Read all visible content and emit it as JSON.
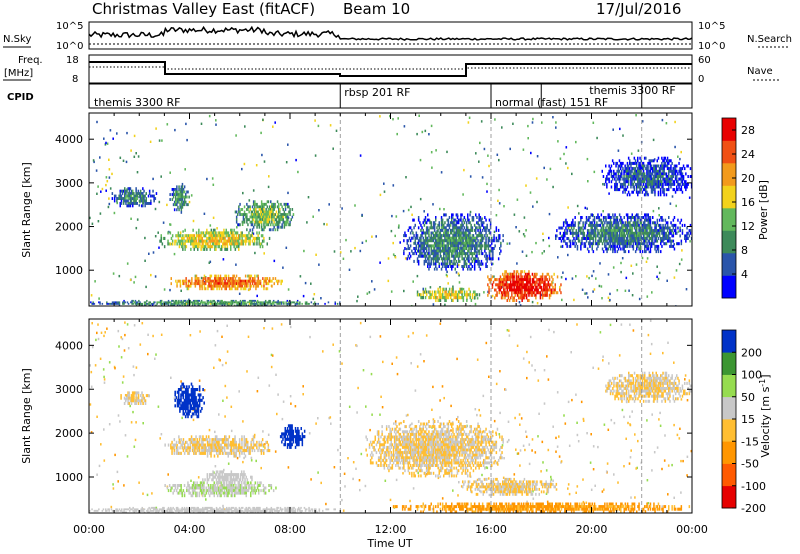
{
  "header": {
    "station": "Christmas Valley East (fitACF)",
    "beam": "Beam 10",
    "date": "17/Jul/2016"
  },
  "panels": {
    "nsky_label": "N.Sky",
    "nsearch_label": "N.Search",
    "freq_label_1": "Freq.",
    "freq_label_2": "[MHz]",
    "nave_label": "Nave",
    "cpid_label": "CPID",
    "nsky_ticks": [
      "10^5",
      "10^0"
    ],
    "nsearch_ticks": [
      "10^5",
      "10^0"
    ],
    "freq_ticks": [
      "18",
      "8"
    ],
    "nave_ticks": [
      "60",
      "0"
    ]
  },
  "cpid": [
    {
      "label": "themis 3300 RF",
      "start": 0,
      "end": 10
    },
    {
      "label": "rbsp 201 RF",
      "start": 10,
      "end": 16
    },
    {
      "label": "normal (fast) 151 RF",
      "start": 16,
      "end": 24
    },
    {
      "label": "themis 3300 RF",
      "start": 18,
      "end": 22
    }
  ],
  "chart_data": [
    {
      "type": "heatmap",
      "title": "",
      "xlabel": "Time UT",
      "ylabel": "Slant Range [km]",
      "xlim": [
        0,
        24
      ],
      "ylim": [
        180,
        4600
      ],
      "x_ticks": [
        "00:00",
        "04:00",
        "08:00",
        "12:00",
        "16:00",
        "20:00",
        "00:00"
      ],
      "y_ticks": [
        1000,
        2000,
        3000,
        4000
      ],
      "colorbar": {
        "label": "Power [dB]",
        "ticks": [
          4,
          8,
          12,
          16,
          20,
          24,
          28
        ],
        "range": [
          0,
          30
        ],
        "colors": [
          "#0000ff",
          "#2a55aa",
          "#3d8a5a",
          "#62b85c",
          "#f2d21c",
          "#f29a1c",
          "#f05014",
          "#e80000"
        ]
      },
      "echo_regions": [
        {
          "t0": 3.2,
          "t1": 7.8,
          "r0": 550,
          "r1": 900,
          "value": 24
        },
        {
          "t0": 2.8,
          "t1": 7.2,
          "r0": 1450,
          "r1": 1950,
          "value": 18
        },
        {
          "t0": 5.8,
          "t1": 8.2,
          "r0": 1900,
          "r1": 2600,
          "value": 14
        },
        {
          "t0": 0.9,
          "t1": 2.7,
          "r0": 2450,
          "r1": 2900,
          "value": 10
        },
        {
          "t0": 3.2,
          "t1": 4.0,
          "r0": 2300,
          "r1": 3000,
          "value": 11
        },
        {
          "t0": 15.8,
          "t1": 18.8,
          "r0": 280,
          "r1": 1000,
          "value": 28
        },
        {
          "t0": 13.0,
          "t1": 15.6,
          "r0": 280,
          "r1": 600,
          "value": 18
        },
        {
          "t0": 18.5,
          "t1": 24.0,
          "r0": 1400,
          "r1": 2300,
          "value": 9
        },
        {
          "t0": 20.4,
          "t1": 24.0,
          "r0": 2700,
          "r1": 3600,
          "value": 7
        },
        {
          "t0": 0.0,
          "t1": 10.0,
          "r0": 180,
          "r1": 320,
          "value": 12
        },
        {
          "t0": 12.5,
          "t1": 16.5,
          "r0": 1000,
          "r1": 2300,
          "value": 10
        }
      ]
    },
    {
      "type": "heatmap",
      "title": "",
      "xlabel": "Time UT",
      "ylabel": "Slant Range [km]",
      "xlim": [
        0,
        24
      ],
      "ylim": [
        180,
        4600
      ],
      "x_ticks": [
        "00:00",
        "04:00",
        "08:00",
        "12:00",
        "16:00",
        "20:00",
        "00:00"
      ],
      "y_ticks": [
        1000,
        2000,
        3000,
        4000
      ],
      "colorbar": {
        "label": "Velocity [m s^-1]",
        "ticks": [
          200,
          100,
          50,
          15,
          -15,
          -50,
          -100,
          -200
        ],
        "range": [
          -250,
          250
        ],
        "colors": [
          "#e60000",
          "#ff5a00",
          "#ff9600",
          "#ffbe32",
          "#c8c8c8",
          "#96dc50",
          "#3c9632",
          "#0032c8"
        ]
      },
      "echo_regions": [
        {
          "t0": 3.0,
          "t1": 7.5,
          "r0": 550,
          "r1": 900,
          "value": 60
        },
        {
          "t0": 4.5,
          "t1": 6.5,
          "r0": 850,
          "r1": 1150,
          "value": 40
        },
        {
          "t0": 3.0,
          "t1": 7.2,
          "r0": 1450,
          "r1": 1950,
          "value": 0
        },
        {
          "t0": 3.4,
          "t1": 4.6,
          "r0": 2350,
          "r1": 3150,
          "value": 220
        },
        {
          "t0": 7.6,
          "t1": 8.6,
          "r0": 1650,
          "r1": 2200,
          "value": 220
        },
        {
          "t0": 1.2,
          "t1": 2.4,
          "r0": 2650,
          "r1": 2950,
          "value": 0
        },
        {
          "t0": 14.8,
          "t1": 18.8,
          "r0": 580,
          "r1": 980,
          "value": 0
        },
        {
          "t0": 11.0,
          "t1": 16.5,
          "r0": 1000,
          "r1": 2300,
          "value": 0
        },
        {
          "t0": 20.5,
          "t1": 24.0,
          "r0": 2700,
          "r1": 3400,
          "value": 0
        },
        {
          "t0": 12.0,
          "t1": 24.0,
          "r0": 180,
          "r1": 420,
          "value": -70
        },
        {
          "t0": 0.0,
          "t1": 10.0,
          "r0": 180,
          "r1": 320,
          "value": 20
        }
      ]
    }
  ]
}
